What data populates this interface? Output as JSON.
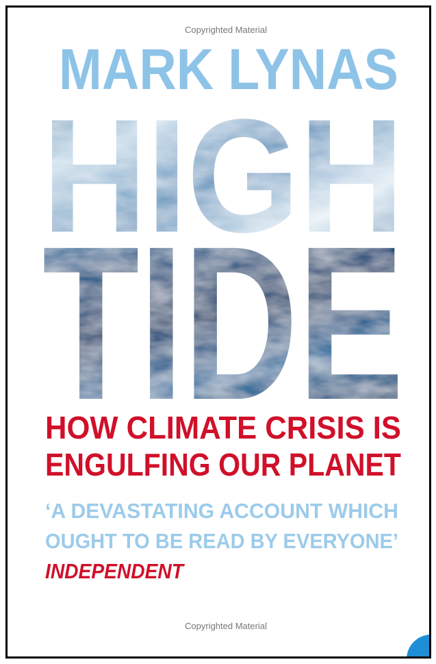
{
  "header": {
    "watermark": "Copyrighted Material",
    "author": "MARK LYNAS"
  },
  "title": {
    "line1": "HIGH",
    "line2": "TIDE"
  },
  "subtitle": [
    "HOW CLIMATE CRISIS IS",
    "ENGULFING OUR PLANET"
  ],
  "quote": {
    "lines": [
      "‘A DEVASTATING ACCOUNT WHICH",
      "OUGHT TO BE READ BY EVERYONE’"
    ],
    "source": "INDEPENDENT"
  },
  "footer": {
    "watermark": "Copyrighted Material"
  }
}
